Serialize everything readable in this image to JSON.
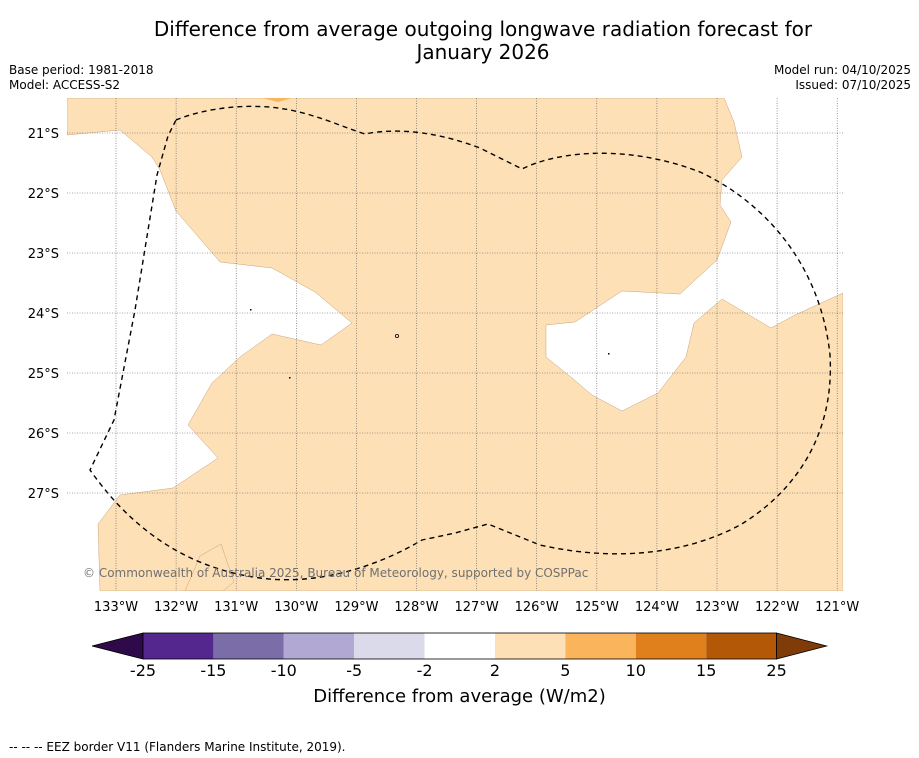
{
  "title_line1": "Difference from average outgoing longwave radiation forecast for",
  "title_line2": "January 2026",
  "base_period": "Base period: 1981-2018",
  "model": "Model: ACCESS-S2",
  "model_run": "Model run: 04/10/2025",
  "issued": "Issued: 07/10/2025",
  "copyright": "© Commonwealth of Australia 2025, Bureau of Meteorology, supported by COSPPac",
  "lat_labels": [
    "21°S",
    "22°S",
    "23°S",
    "24°S",
    "25°S",
    "26°S",
    "27°S"
  ],
  "lon_labels": [
    "133°W",
    "132°W",
    "131°W",
    "130°W",
    "129°W",
    "128°W",
    "127°W",
    "126°W",
    "125°W",
    "124°W",
    "123°W",
    "122°W",
    "121°W"
  ],
  "colorbar": {
    "title": "Difference from average (W/m2)",
    "ticks": [
      "-25",
      "-15",
      "-10",
      "-5",
      "-2",
      "2",
      "5",
      "10",
      "15",
      "25"
    ],
    "colors": [
      "#2e0a4a",
      "#54278f",
      "#7b6ea8",
      "#b1a9d3",
      "#dadaeb",
      "#ffffff",
      "#fde0b6",
      "#f9b45c",
      "#e0801c",
      "#b35806",
      "#7f3b08"
    ]
  },
  "map_colors": {
    "light_orange": "#fde0b6",
    "orange": "#f9b45c",
    "no_change": "#ffffff"
  },
  "footer": "-- -- -- EEZ border V11 (Flanders Marine Institute, 2019)."
}
